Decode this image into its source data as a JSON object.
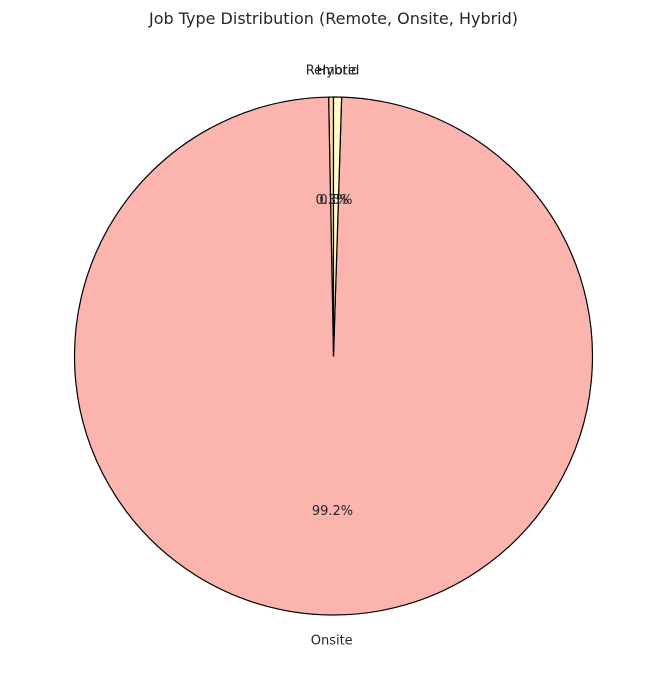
{
  "chart_data": {
    "type": "pie",
    "title": "Job Type Distribution (Remote, Onsite, Hybrid)",
    "start_angle_deg": 90,
    "direction": "counterclockwise",
    "slices": [
      {
        "label": "Remote",
        "value": 0.3,
        "pct_label": "0.3%",
        "color": "#fed9a6"
      },
      {
        "label": "Onsite",
        "value": 99.2,
        "pct_label": "99.2%",
        "color": "#fbb4ae"
      },
      {
        "label": "Hybrid",
        "value": 0.5,
        "pct_label": "0.5%",
        "color": "#ffffcc"
      }
    ],
    "edge_color": "#000000"
  }
}
